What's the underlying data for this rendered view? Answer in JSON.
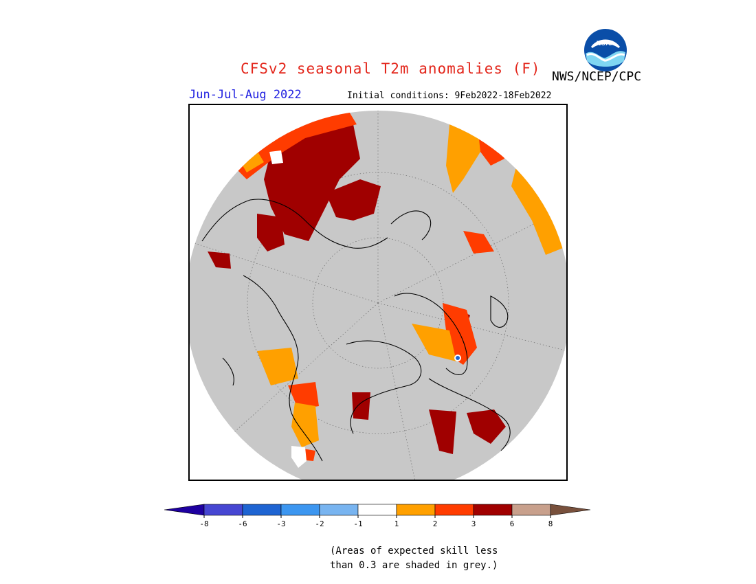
{
  "header": {
    "title": "CFSv2 seasonal T2m anomalies (F)",
    "agency": "NWS/NCEP/CPC",
    "season": "Jun-Jul-Aug 2022",
    "initial_conditions": "Initial conditions: 9Feb2022-18Feb2022",
    "logo_text": "NOAA"
  },
  "map": {
    "projection": "north polar stereographic",
    "background_color": "#c8c8c8",
    "coast_color": "#000000"
  },
  "colorbar": {
    "tick_labels": [
      "-8",
      "-6",
      "-3",
      "-2",
      "-1",
      "1",
      "2",
      "3",
      "6",
      "8"
    ],
    "bins": [
      {
        "range": "< -8",
        "color": "#1e00a0"
      },
      {
        "range": "-8..-6",
        "color": "#4646d2"
      },
      {
        "range": "-6..-3",
        "color": "#1e64d2"
      },
      {
        "range": "-3..-2",
        "color": "#3c96f0"
      },
      {
        "range": "-2..-1",
        "color": "#78b4f0"
      },
      {
        "range": "-1..1",
        "color": "#ffffff"
      },
      {
        "range": "1..2",
        "color": "#ffa000"
      },
      {
        "range": "2..3",
        "color": "#ff3c00"
      },
      {
        "range": "3..6",
        "color": "#a00000"
      },
      {
        "range": "6..8",
        "color": "#c8a08c"
      },
      {
        "range": "> 8",
        "color": "#78503c"
      }
    ]
  },
  "footnote": {
    "line1": "(Areas of expected skill less",
    "line2": "than 0.3 are shaded in grey.)"
  }
}
